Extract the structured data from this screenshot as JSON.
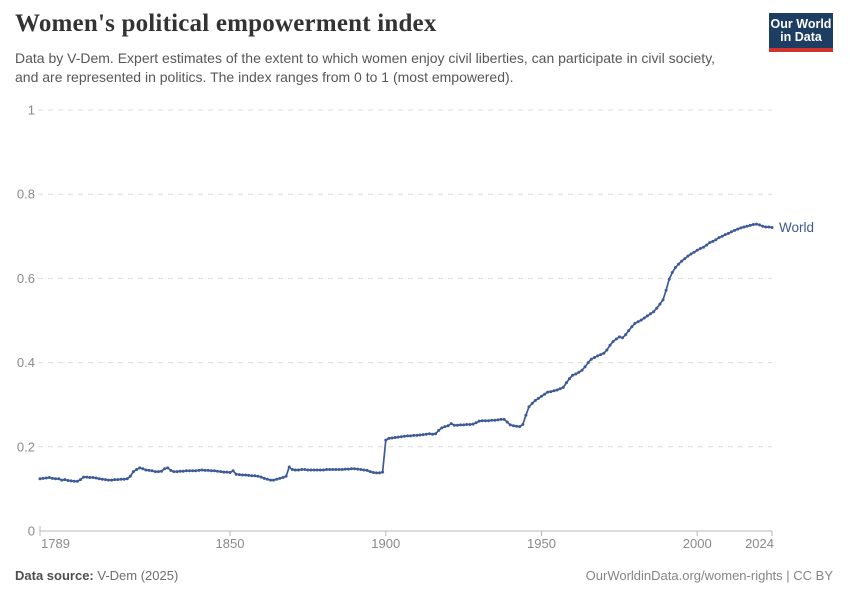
{
  "header": {
    "title": "Women's political empowerment index",
    "subtitle": "Data by V-Dem. Expert estimates of the extent to which women enjoy civil liberties, can participate in civil society, and are represented in politics. The index ranges from 0 to 1 (most empowered).",
    "logo": {
      "line1": "Our World",
      "line2": "in Data",
      "bg_color": "#1d3d63",
      "stripe_color": "#d1342f"
    }
  },
  "footer": {
    "source_label": "Data source:",
    "source_value": " V-Dem (2025)",
    "credit": "OurWorldinData.org/women-rights | CC BY"
  },
  "chart_data": {
    "type": "line",
    "title": "Women's political empowerment index",
    "xlabel": "",
    "ylabel": "",
    "xlim": [
      1789,
      2024
    ],
    "ylim": [
      0,
      1
    ],
    "grid": "horizontal-dashed",
    "grid_color": "#dcdcdc",
    "axis_color": "#b9b9b9",
    "tick_label_color": "#8a8a8a",
    "legend": "end-of-line-label",
    "x_ticks": [
      {
        "value": 1789,
        "label": "1789"
      },
      {
        "value": 1850,
        "label": "1850"
      },
      {
        "value": 1900,
        "label": "1900"
      },
      {
        "value": 1950,
        "label": "1950"
      },
      {
        "value": 2000,
        "label": "2000"
      },
      {
        "value": 2024,
        "label": "2024"
      }
    ],
    "y_ticks": [
      {
        "value": 0,
        "label": "0"
      },
      {
        "value": 0.2,
        "label": "0.2"
      },
      {
        "value": 0.4,
        "label": "0.4"
      },
      {
        "value": 0.6,
        "label": "0.6"
      },
      {
        "value": 0.8,
        "label": "0.8"
      },
      {
        "value": 1,
        "label": "1"
      }
    ],
    "series": [
      {
        "name": "World",
        "color": "#3d5a96",
        "points": [
          [
            1789,
            0.124
          ],
          [
            1790,
            0.125
          ],
          [
            1791,
            0.126
          ],
          [
            1792,
            0.127
          ],
          [
            1793,
            0.125
          ],
          [
            1794,
            0.124
          ],
          [
            1795,
            0.124
          ],
          [
            1796,
            0.121
          ],
          [
            1797,
            0.122
          ],
          [
            1798,
            0.12
          ],
          [
            1799,
            0.119
          ],
          [
            1800,
            0.118
          ],
          [
            1801,
            0.118
          ],
          [
            1802,
            0.122
          ],
          [
            1803,
            0.128
          ],
          [
            1804,
            0.128
          ],
          [
            1805,
            0.127
          ],
          [
            1806,
            0.127
          ],
          [
            1807,
            0.126
          ],
          [
            1808,
            0.124
          ],
          [
            1809,
            0.123
          ],
          [
            1810,
            0.122
          ],
          [
            1811,
            0.121
          ],
          [
            1812,
            0.121
          ],
          [
            1813,
            0.122
          ],
          [
            1814,
            0.122
          ],
          [
            1815,
            0.123
          ],
          [
            1816,
            0.123
          ],
          [
            1817,
            0.124
          ],
          [
            1818,
            0.13
          ],
          [
            1819,
            0.141
          ],
          [
            1820,
            0.146
          ],
          [
            1821,
            0.15
          ],
          [
            1822,
            0.148
          ],
          [
            1823,
            0.145
          ],
          [
            1824,
            0.144
          ],
          [
            1825,
            0.143
          ],
          [
            1826,
            0.141
          ],
          [
            1827,
            0.141
          ],
          [
            1828,
            0.142
          ],
          [
            1829,
            0.148
          ],
          [
            1830,
            0.15
          ],
          [
            1831,
            0.144
          ],
          [
            1832,
            0.141
          ],
          [
            1833,
            0.141
          ],
          [
            1834,
            0.142
          ],
          [
            1835,
            0.142
          ],
          [
            1836,
            0.143
          ],
          [
            1837,
            0.143
          ],
          [
            1838,
            0.143
          ],
          [
            1839,
            0.143
          ],
          [
            1840,
            0.144
          ],
          [
            1841,
            0.145
          ],
          [
            1842,
            0.144
          ],
          [
            1843,
            0.144
          ],
          [
            1844,
            0.143
          ],
          [
            1845,
            0.143
          ],
          [
            1846,
            0.142
          ],
          [
            1847,
            0.141
          ],
          [
            1848,
            0.14
          ],
          [
            1849,
            0.14
          ],
          [
            1850,
            0.139
          ],
          [
            1851,
            0.143
          ],
          [
            1852,
            0.135
          ],
          [
            1853,
            0.134
          ],
          [
            1854,
            0.133
          ],
          [
            1855,
            0.133
          ],
          [
            1856,
            0.132
          ],
          [
            1857,
            0.131
          ],
          [
            1858,
            0.131
          ],
          [
            1859,
            0.13
          ],
          [
            1860,
            0.128
          ],
          [
            1861,
            0.125
          ],
          [
            1862,
            0.123
          ],
          [
            1863,
            0.121
          ],
          [
            1864,
            0.121
          ],
          [
            1865,
            0.123
          ],
          [
            1866,
            0.125
          ],
          [
            1867,
            0.127
          ],
          [
            1868,
            0.13
          ],
          [
            1869,
            0.152
          ],
          [
            1870,
            0.146
          ],
          [
            1871,
            0.145
          ],
          [
            1872,
            0.145
          ],
          [
            1873,
            0.146
          ],
          [
            1874,
            0.146
          ],
          [
            1875,
            0.145
          ],
          [
            1876,
            0.145
          ],
          [
            1877,
            0.145
          ],
          [
            1878,
            0.145
          ],
          [
            1879,
            0.145
          ],
          [
            1880,
            0.145
          ],
          [
            1881,
            0.146
          ],
          [
            1882,
            0.146
          ],
          [
            1883,
            0.146
          ],
          [
            1884,
            0.146
          ],
          [
            1885,
            0.146
          ],
          [
            1886,
            0.146
          ],
          [
            1887,
            0.147
          ],
          [
            1888,
            0.147
          ],
          [
            1889,
            0.148
          ],
          [
            1890,
            0.148
          ],
          [
            1891,
            0.147
          ],
          [
            1892,
            0.146
          ],
          [
            1893,
            0.145
          ],
          [
            1894,
            0.144
          ],
          [
            1895,
            0.141
          ],
          [
            1896,
            0.139
          ],
          [
            1897,
            0.138
          ],
          [
            1898,
            0.138
          ],
          [
            1899,
            0.14
          ],
          [
            1900,
            0.216
          ],
          [
            1901,
            0.22
          ],
          [
            1902,
            0.221
          ],
          [
            1903,
            0.222
          ],
          [
            1904,
            0.223
          ],
          [
            1905,
            0.224
          ],
          [
            1906,
            0.225
          ],
          [
            1907,
            0.226
          ],
          [
            1908,
            0.226
          ],
          [
            1909,
            0.227
          ],
          [
            1910,
            0.227
          ],
          [
            1911,
            0.228
          ],
          [
            1912,
            0.229
          ],
          [
            1913,
            0.23
          ],
          [
            1914,
            0.231
          ],
          [
            1915,
            0.23
          ],
          [
            1916,
            0.231
          ],
          [
            1917,
            0.239
          ],
          [
            1918,
            0.245
          ],
          [
            1919,
            0.248
          ],
          [
            1920,
            0.25
          ],
          [
            1921,
            0.255
          ],
          [
            1922,
            0.251
          ],
          [
            1923,
            0.251
          ],
          [
            1924,
            0.252
          ],
          [
            1925,
            0.252
          ],
          [
            1926,
            0.253
          ],
          [
            1927,
            0.253
          ],
          [
            1928,
            0.254
          ],
          [
            1929,
            0.257
          ],
          [
            1930,
            0.261
          ],
          [
            1931,
            0.262
          ],
          [
            1932,
            0.262
          ],
          [
            1933,
            0.262
          ],
          [
            1934,
            0.263
          ],
          [
            1935,
            0.263
          ],
          [
            1936,
            0.264
          ],
          [
            1937,
            0.265
          ],
          [
            1938,
            0.265
          ],
          [
            1939,
            0.259
          ],
          [
            1940,
            0.252
          ],
          [
            1941,
            0.25
          ],
          [
            1942,
            0.249
          ],
          [
            1943,
            0.248
          ],
          [
            1944,
            0.253
          ],
          [
            1945,
            0.275
          ],
          [
            1946,
            0.295
          ],
          [
            1947,
            0.303
          ],
          [
            1948,
            0.31
          ],
          [
            1949,
            0.315
          ],
          [
            1950,
            0.32
          ],
          [
            1951,
            0.325
          ],
          [
            1952,
            0.33
          ],
          [
            1953,
            0.331
          ],
          [
            1954,
            0.333
          ],
          [
            1955,
            0.335
          ],
          [
            1956,
            0.338
          ],
          [
            1957,
            0.341
          ],
          [
            1958,
            0.352
          ],
          [
            1959,
            0.362
          ],
          [
            1960,
            0.37
          ],
          [
            1961,
            0.373
          ],
          [
            1962,
            0.377
          ],
          [
            1963,
            0.382
          ],
          [
            1964,
            0.39
          ],
          [
            1965,
            0.4
          ],
          [
            1966,
            0.408
          ],
          [
            1967,
            0.412
          ],
          [
            1968,
            0.416
          ],
          [
            1969,
            0.419
          ],
          [
            1970,
            0.422
          ],
          [
            1971,
            0.43
          ],
          [
            1972,
            0.441
          ],
          [
            1973,
            0.45
          ],
          [
            1974,
            0.456
          ],
          [
            1975,
            0.461
          ],
          [
            1976,
            0.459
          ],
          [
            1977,
            0.466
          ],
          [
            1978,
            0.476
          ],
          [
            1979,
            0.485
          ],
          [
            1980,
            0.493
          ],
          [
            1981,
            0.497
          ],
          [
            1982,
            0.501
          ],
          [
            1983,
            0.506
          ],
          [
            1984,
            0.511
          ],
          [
            1985,
            0.516
          ],
          [
            1986,
            0.521
          ],
          [
            1987,
            0.529
          ],
          [
            1988,
            0.539
          ],
          [
            1989,
            0.549
          ],
          [
            1990,
            0.572
          ],
          [
            1991,
            0.598
          ],
          [
            1992,
            0.614
          ],
          [
            1993,
            0.626
          ],
          [
            1994,
            0.634
          ],
          [
            1995,
            0.641
          ],
          [
            1996,
            0.647
          ],
          [
            1997,
            0.653
          ],
          [
            1998,
            0.658
          ],
          [
            1999,
            0.662
          ],
          [
            2000,
            0.667
          ],
          [
            2001,
            0.671
          ],
          [
            2002,
            0.674
          ],
          [
            2003,
            0.679
          ],
          [
            2004,
            0.685
          ],
          [
            2005,
            0.688
          ],
          [
            2006,
            0.692
          ],
          [
            2007,
            0.697
          ],
          [
            2008,
            0.7
          ],
          [
            2009,
            0.704
          ],
          [
            2010,
            0.707
          ],
          [
            2011,
            0.711
          ],
          [
            2012,
            0.714
          ],
          [
            2013,
            0.717
          ],
          [
            2014,
            0.72
          ],
          [
            2015,
            0.722
          ],
          [
            2016,
            0.724
          ],
          [
            2017,
            0.726
          ],
          [
            2018,
            0.728
          ],
          [
            2019,
            0.729
          ],
          [
            2020,
            0.727
          ],
          [
            2021,
            0.724
          ],
          [
            2022,
            0.722
          ],
          [
            2023,
            0.722
          ],
          [
            2024,
            0.721
          ]
        ]
      }
    ]
  }
}
